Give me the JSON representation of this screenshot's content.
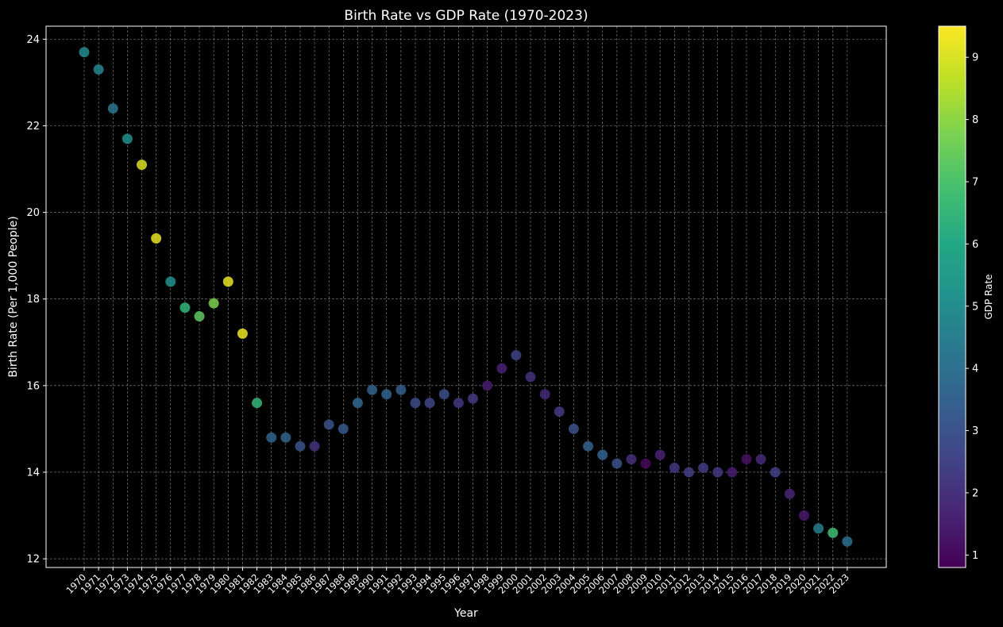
{
  "chart_data": {
    "type": "scatter",
    "title": "Birth Rate vs GDP Rate (1970-2023)",
    "xlabel": "Year",
    "ylabel": "Birth Rate (Per 1,000 People)",
    "colorbar_label": "GDP Rate",
    "ylim": [
      11.8,
      24.3
    ],
    "yticks": [
      12,
      14,
      16,
      18,
      20,
      22,
      24
    ],
    "colorbar_range": [
      0.8,
      9.5
    ],
    "colorbar_ticks": [
      1,
      2,
      3,
      4,
      5,
      6,
      7,
      8,
      9
    ],
    "colormap": "viridis",
    "grid": true,
    "background": "#000000",
    "x": [
      1970,
      1971,
      1972,
      1973,
      1974,
      1975,
      1976,
      1977,
      1978,
      1979,
      1980,
      1981,
      1982,
      1983,
      1984,
      1985,
      1986,
      1987,
      1988,
      1989,
      1990,
      1991,
      1992,
      1993,
      1994,
      1995,
      1996,
      1997,
      1998,
      1999,
      2000,
      2001,
      2002,
      2003,
      2004,
      2005,
      2006,
      2007,
      2008,
      2009,
      2010,
      2011,
      2012,
      2013,
      2014,
      2015,
      2016,
      2017,
      2018,
      2019,
      2020,
      2021,
      2022,
      2023
    ],
    "birth_rate": [
      23.7,
      23.3,
      22.4,
      21.7,
      21.1,
      19.4,
      18.4,
      17.8,
      17.6,
      17.9,
      18.4,
      17.2,
      15.6,
      14.8,
      14.8,
      14.6,
      14.6,
      15.1,
      15.0,
      15.6,
      15.9,
      15.8,
      15.9,
      15.6,
      15.6,
      15.8,
      15.6,
      15.7,
      16.0,
      16.4,
      16.7,
      16.2,
      15.8,
      15.4,
      15.0,
      14.6,
      14.4,
      14.2,
      14.3,
      14.2,
      14.4,
      14.1,
      14.0,
      14.1,
      14.0,
      14.0,
      14.3,
      14.3,
      14.0,
      13.5,
      13.0,
      12.7,
      12.6,
      12.4
    ],
    "gdp_rate": [
      5.0,
      4.8,
      4.2,
      5.2,
      9.0,
      9.2,
      5.2,
      6.5,
      7.3,
      7.8,
      9.2,
      9.3,
      6.5,
      3.6,
      3.5,
      3.0,
      2.0,
      3.0,
      3.2,
      3.8,
      3.6,
      3.6,
      3.4,
      2.8,
      2.6,
      2.8,
      2.2,
      2.3,
      1.5,
      1.6,
      2.5,
      2.0,
      1.8,
      2.3,
      3.0,
      3.5,
      3.6,
      3.0,
      2.0,
      1.0,
      1.6,
      2.2,
      2.4,
      2.3,
      2.2,
      1.5,
      1.2,
      1.8,
      2.5,
      1.7,
      1.4,
      4.5,
      6.8,
      4.0
    ]
  }
}
